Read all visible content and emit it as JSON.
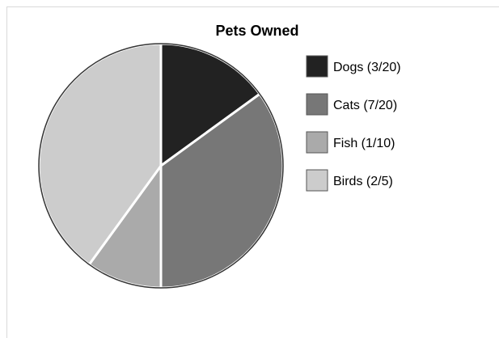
{
  "chart_data": {
    "type": "pie",
    "title": "Pets Owned",
    "legend_position": "right",
    "slices": [
      {
        "label": "Dogs",
        "fraction": "3/20",
        "value": 0.15,
        "color": "#222222"
      },
      {
        "label": "Cats",
        "fraction": "7/20",
        "value": 0.35,
        "color": "#777777"
      },
      {
        "label": "Fish",
        "fraction": "1/10",
        "value": 0.1,
        "color": "#aaaaaa"
      },
      {
        "label": "Birds",
        "fraction": "2/5",
        "value": 0.4,
        "color": "#cccccc"
      }
    ],
    "legend": [
      {
        "text": "Dogs (3/20)"
      },
      {
        "text": "Cats (7/20)"
      },
      {
        "text": "Fish (1/10)"
      },
      {
        "text": "Birds (2/5)"
      }
    ],
    "edge_color": "#ffffff",
    "outline_color": "#333333"
  }
}
